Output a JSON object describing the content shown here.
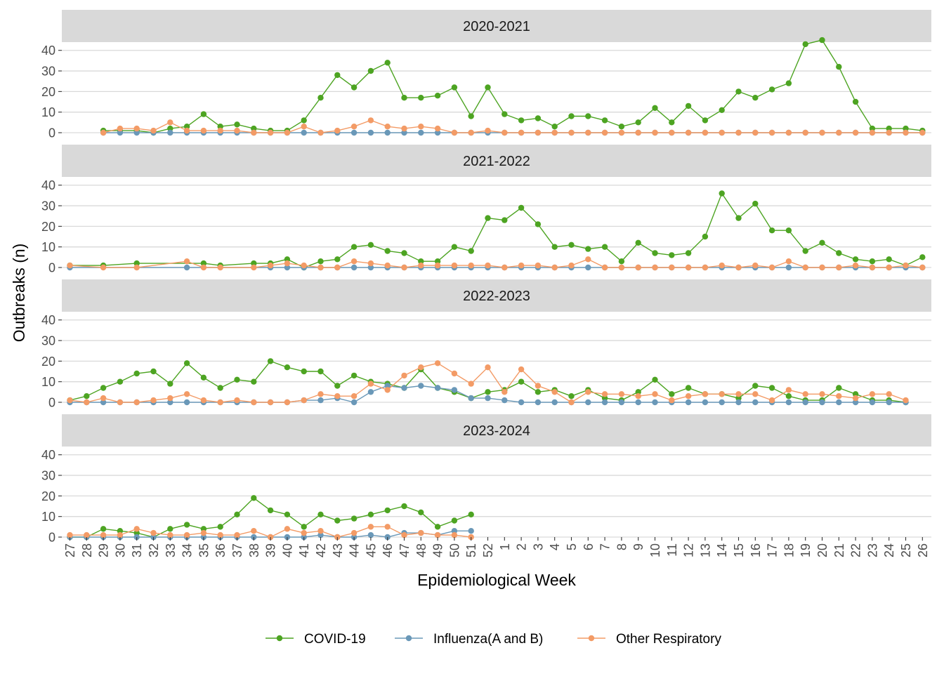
{
  "chart_data": {
    "type": "line",
    "xlabel": "Epidemiological Week",
    "ylabel": "Outbreaks (n)",
    "x": [
      "27",
      "28",
      "29",
      "30",
      "31",
      "32",
      "33",
      "34",
      "35",
      "36",
      "37",
      "38",
      "39",
      "40",
      "41",
      "42",
      "43",
      "44",
      "45",
      "46",
      "47",
      "48",
      "49",
      "50",
      "51",
      "52",
      "1",
      "2",
      "3",
      "4",
      "5",
      "6",
      "7",
      "8",
      "9",
      "10",
      "11",
      "12",
      "13",
      "14",
      "15",
      "16",
      "17",
      "18",
      "19",
      "20",
      "21",
      "22",
      "23",
      "24",
      "25",
      "26"
    ],
    "y_ticks": [
      0,
      10,
      20,
      30,
      40
    ],
    "ylim": [
      0,
      44
    ],
    "grid": true,
    "legend_position": "bottom",
    "colors": {
      "COVID-19": "#4da422",
      "Influenza(A and B)": "#6a98b8",
      "Other Respiratory": "#f39b66"
    },
    "legend": [
      "COVID-19",
      "Influenza(A and B)",
      "Other Respiratory"
    ],
    "panels": [
      {
        "label": "2020-2021",
        "series": [
          {
            "name": "COVID-19",
            "values": [
              null,
              null,
              1,
              1,
              1,
              0,
              2,
              3,
              9,
              3,
              4,
              2,
              1,
              1,
              6,
              17,
              28,
              22,
              30,
              34,
              17,
              17,
              18,
              22,
              8,
              22,
              9,
              6,
              7,
              3,
              8,
              8,
              6,
              3,
              5,
              12,
              5,
              13,
              6,
              11,
              20,
              17,
              21,
              24,
              43,
              45,
              32,
              15,
              2,
              2,
              2,
              1
            ]
          },
          {
            "name": "Influenza(A and B)",
            "values": [
              null,
              null,
              0,
              0,
              0,
              0,
              0,
              0,
              0,
              0,
              0,
              0,
              0,
              0,
              0,
              0,
              0,
              0,
              0,
              0,
              0,
              0,
              0,
              0,
              0,
              0,
              0,
              0,
              0,
              0,
              0,
              0,
              0,
              0,
              0,
              0,
              0,
              0,
              0,
              0,
              0,
              0,
              0,
              0,
              0,
              0,
              0,
              0,
              0,
              0,
              0,
              0
            ]
          },
          {
            "name": "Other Respiratory",
            "values": [
              null,
              null,
              0,
              2,
              2,
              1,
              5,
              1,
              1,
              1,
              1,
              0,
              0,
              0,
              3,
              0,
              1,
              3,
              6,
              3,
              2,
              3,
              2,
              0,
              0,
              1,
              0,
              0,
              0,
              0,
              0,
              0,
              0,
              0,
              0,
              0,
              0,
              0,
              0,
              0,
              0,
              0,
              0,
              0,
              0,
              0,
              0,
              0,
              0,
              0,
              0,
              0
            ]
          }
        ]
      },
      {
        "label": "2021-2022",
        "series": [
          {
            "name": "COVID-19",
            "values": [
              1,
              null,
              1,
              null,
              2,
              null,
              null,
              null,
              2,
              1,
              null,
              2,
              2,
              4,
              0,
              3,
              4,
              10,
              11,
              8,
              7,
              3,
              3,
              10,
              8,
              24,
              23,
              29,
              21,
              10,
              11,
              9,
              10,
              3,
              12,
              7,
              6,
              7,
              15,
              36,
              24,
              31,
              18,
              18,
              8,
              12,
              7,
              4,
              3,
              4,
              1,
              5
            ]
          },
          {
            "name": "Influenza(A and B)",
            "values": [
              0,
              null,
              null,
              null,
              null,
              null,
              null,
              0,
              null,
              null,
              null,
              null,
              0,
              0,
              0,
              0,
              0,
              0,
              0,
              0,
              0,
              0,
              0,
              0,
              0,
              0,
              0,
              0,
              0,
              0,
              0,
              0,
              0,
              0,
              0,
              0,
              0,
              0,
              0,
              0,
              0,
              0,
              0,
              0,
              0,
              0,
              0,
              0,
              0,
              0,
              0,
              0
            ]
          },
          {
            "name": "Other Respiratory",
            "values": [
              1,
              null,
              0,
              null,
              0,
              null,
              null,
              3,
              0,
              0,
              null,
              0,
              1,
              2,
              1,
              0,
              0,
              3,
              2,
              1,
              0,
              1,
              1,
              1,
              1,
              1,
              0,
              1,
              1,
              0,
              1,
              4,
              0,
              0,
              0,
              0,
              0,
              0,
              0,
              1,
              0,
              1,
              0,
              3,
              0,
              0,
              0,
              1,
              0,
              0,
              1,
              0
            ]
          }
        ]
      },
      {
        "label": "2022-2023",
        "series": [
          {
            "name": "COVID-19",
            "values": [
              1,
              3,
              7,
              10,
              14,
              15,
              9,
              19,
              12,
              7,
              11,
              10,
              20,
              17,
              15,
              15,
              8,
              13,
              10,
              9,
              7,
              16,
              7,
              5,
              2,
              5,
              6,
              10,
              5,
              6,
              3,
              6,
              2,
              1,
              5,
              11,
              4,
              7,
              4,
              4,
              2,
              8,
              7,
              3,
              1,
              1,
              7,
              4,
              1,
              1,
              0,
              null
            ]
          },
          {
            "name": "Influenza(A and B)",
            "values": [
              0,
              0,
              0,
              0,
              0,
              0,
              0,
              0,
              0,
              0,
              0,
              0,
              0,
              0,
              1,
              1,
              2,
              0,
              5,
              8,
              7,
              8,
              7,
              6,
              2,
              2,
              1,
              0,
              0,
              0,
              0,
              0,
              0,
              0,
              0,
              0,
              0,
              0,
              0,
              0,
              0,
              0,
              0,
              0,
              0,
              0,
              0,
              0,
              0,
              0,
              0,
              null
            ]
          },
          {
            "name": "Other Respiratory",
            "values": [
              1,
              0,
              2,
              0,
              0,
              1,
              2,
              4,
              1,
              0,
              1,
              0,
              0,
              0,
              1,
              4,
              3,
              3,
              9,
              6,
              13,
              17,
              19,
              14,
              9,
              17,
              5,
              16,
              8,
              5,
              0,
              5,
              4,
              4,
              3,
              4,
              1,
              3,
              4,
              4,
              4,
              4,
              1,
              6,
              4,
              4,
              3,
              2,
              4,
              4,
              1,
              null
            ]
          }
        ]
      },
      {
        "label": "2023-2024",
        "series": [
          {
            "name": "COVID-19",
            "values": [
              0,
              0,
              4,
              3,
              2,
              0,
              4,
              6,
              4,
              5,
              11,
              19,
              13,
              11,
              5,
              11,
              8,
              9,
              11,
              13,
              15,
              12,
              5,
              8,
              11,
              null,
              null,
              null,
              null,
              null,
              null,
              null,
              null,
              null,
              null,
              null,
              null,
              null,
              null,
              null,
              null,
              null,
              null,
              null,
              null,
              null,
              null,
              null,
              null,
              null,
              null,
              null
            ]
          },
          {
            "name": "Influenza(A and B)",
            "values": [
              0,
              0,
              0,
              0,
              0,
              0,
              0,
              0,
              0,
              0,
              0,
              0,
              0,
              0,
              0,
              1,
              0,
              0,
              1,
              0,
              2,
              2,
              1,
              3,
              3,
              null,
              null,
              null,
              null,
              null,
              null,
              null,
              null,
              null,
              null,
              null,
              null,
              null,
              null,
              null,
              null,
              null,
              null,
              null,
              null,
              null,
              null,
              null,
              null,
              null,
              null,
              null
            ]
          },
          {
            "name": "Other Respiratory",
            "values": [
              1,
              1,
              1,
              1,
              4,
              2,
              1,
              1,
              2,
              1,
              1,
              3,
              0,
              4,
              2,
              3,
              0,
              2,
              5,
              5,
              1,
              2,
              1,
              1,
              0,
              null,
              null,
              null,
              null,
              null,
              null,
              null,
              null,
              null,
              null,
              null,
              null,
              null,
              null,
              null,
              null,
              null,
              null,
              null,
              null,
              null,
              null,
              null,
              null,
              null,
              null,
              null
            ]
          }
        ]
      }
    ]
  }
}
